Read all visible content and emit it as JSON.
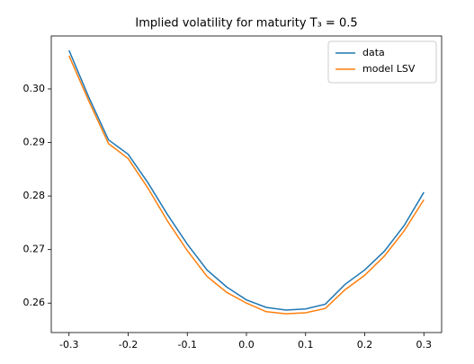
{
  "chart_data": {
    "type": "line",
    "title": "Implied volatility for maturity T₃ = 0.5",
    "x": [
      -0.3,
      -0.2667,
      -0.2333,
      -0.2,
      -0.1667,
      -0.1333,
      -0.1,
      -0.0667,
      -0.0333,
      0,
      0.0333,
      0.0667,
      0.1,
      0.1333,
      0.1667,
      0.2,
      0.2333,
      0.2667,
      0.3
    ],
    "series": [
      {
        "name": "data",
        "color": "#1f77b4",
        "values": [
          0.3072,
          0.2985,
          0.2905,
          0.2878,
          0.2825,
          0.2765,
          0.271,
          0.2662,
          0.263,
          0.2606,
          0.2592,
          0.2587,
          0.2589,
          0.2598,
          0.2635,
          0.2662,
          0.2697,
          0.2745,
          0.2807
        ]
      },
      {
        "name": "model LSV",
        "color": "#ff7f0e",
        "values": [
          0.3062,
          0.2978,
          0.2898,
          0.287,
          0.2815,
          0.2753,
          0.2698,
          0.265,
          0.262,
          0.26,
          0.2584,
          0.258,
          0.2582,
          0.259,
          0.2625,
          0.2652,
          0.2688,
          0.2735,
          0.2793
        ]
      }
    ],
    "xlim": [
      -0.33,
      0.33
    ],
    "ylim": [
      0.2545,
      0.3099
    ],
    "xticks": [
      -0.3,
      -0.2,
      -0.1,
      {
        "value": 0,
        "label": "0.0"
      },
      0.1,
      0.2,
      0.3
    ],
    "yticks": [
      {
        "value": 0.26,
        "label": "0.26"
      },
      {
        "value": 0.27,
        "label": "0.27"
      },
      {
        "value": 0.28,
        "label": "0.28"
      },
      {
        "value": 0.29,
        "label": "0.29"
      },
      {
        "value": 0.3,
        "label": "0.30"
      }
    ],
    "legend": "upper right"
  }
}
